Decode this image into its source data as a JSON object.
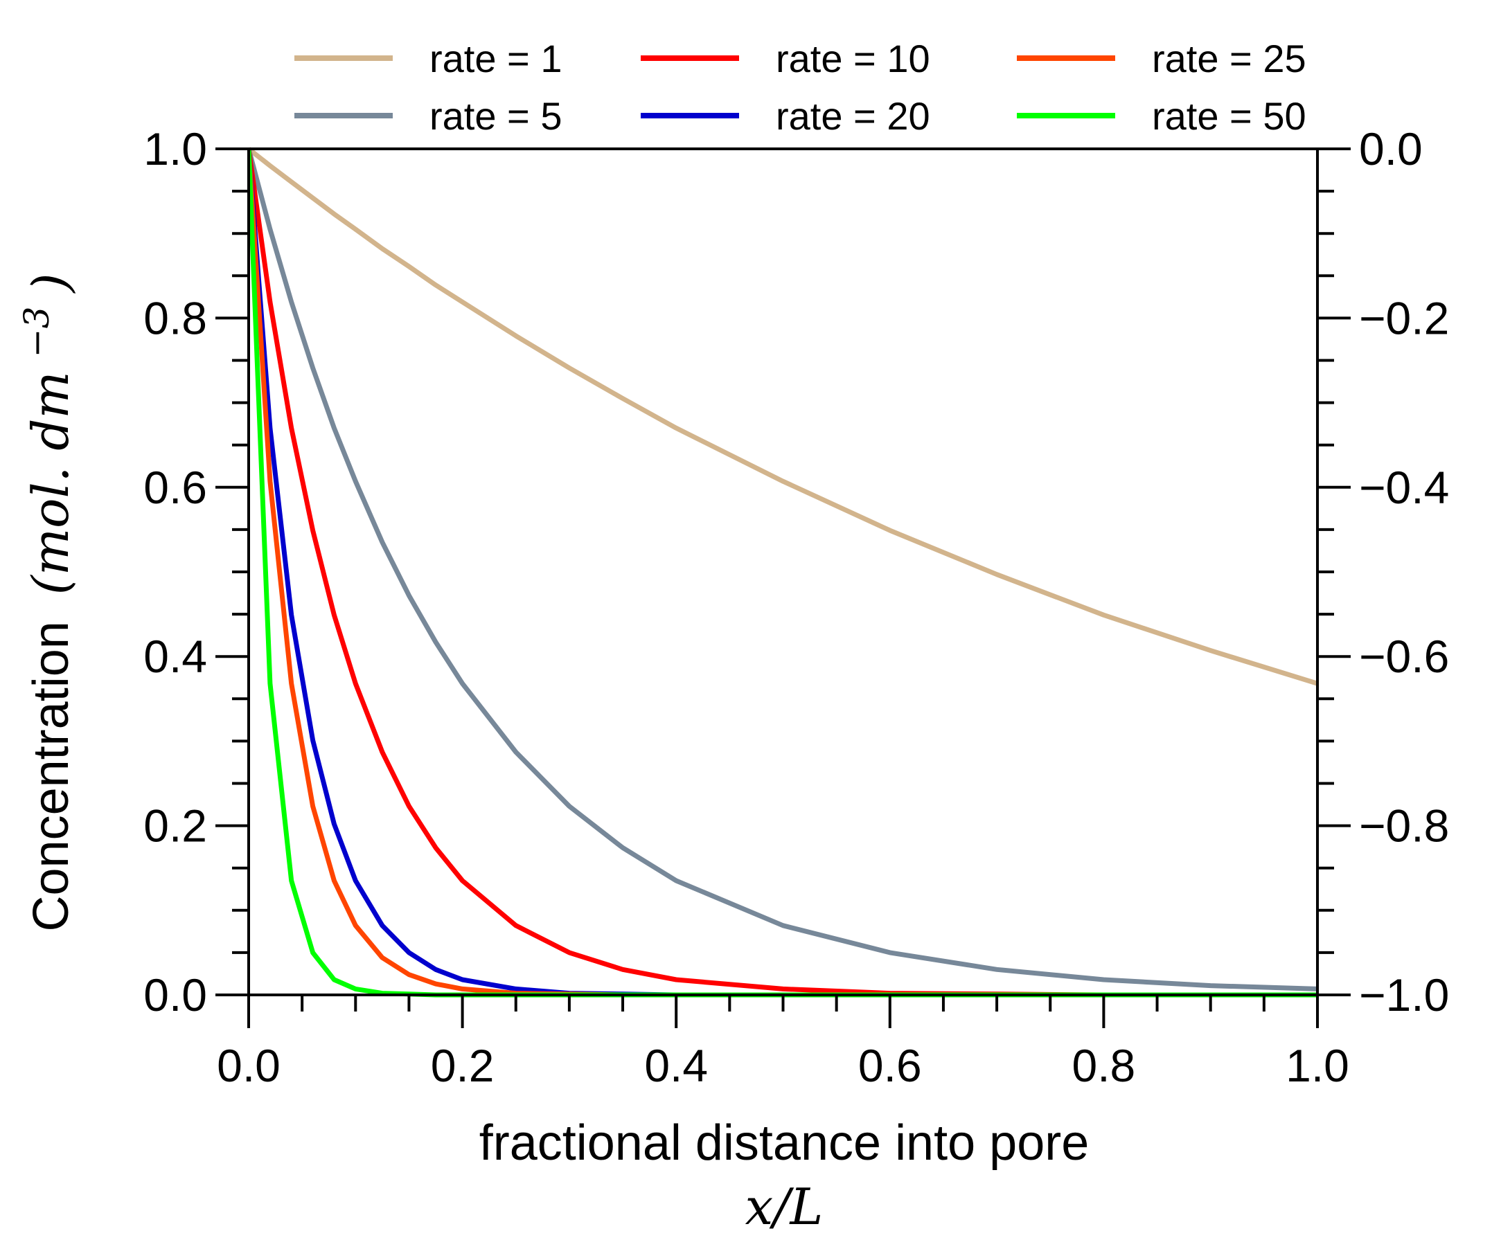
{
  "chart_data": {
    "type": "line",
    "xlabel": "fractional distance into pore",
    "xlabel_math": "x/L",
    "ylabel_text": "Concentration",
    "ylabel_unit_math": "(mol. dm",
    "ylabel_unit_exponent": "−3",
    "ylabel_unit_close": ")",
    "xlim": [
      0,
      1
    ],
    "ylim": [
      0,
      1
    ],
    "y2lim": [
      -1,
      0
    ],
    "x_ticks": [
      "0.0",
      "0.2",
      "0.4",
      "0.6",
      "0.8",
      "1.0"
    ],
    "y_ticks": [
      "0.0",
      "0.2",
      "0.4",
      "0.6",
      "0.8",
      "1.0"
    ],
    "y2_ticks": [
      "−1.0",
      "−0.8",
      "−0.6",
      "−0.4",
      "−0.2",
      "0.0"
    ],
    "grid": false,
    "legend_placement": "top",
    "x": [
      0,
      0.02,
      0.04,
      0.06,
      0.08,
      0.1,
      0.125,
      0.15,
      0.175,
      0.2,
      0.25,
      0.3,
      0.35,
      0.4,
      0.5,
      0.6,
      0.7,
      0.8,
      0.9,
      1.0
    ],
    "series": [
      {
        "name": "rate = 1",
        "color": "#d2b48c",
        "values": [
          1.0,
          0.98,
          0.961,
          0.942,
          0.923,
          0.905,
          0.882,
          0.861,
          0.839,
          0.819,
          0.779,
          0.741,
          0.705,
          0.67,
          0.607,
          0.549,
          0.497,
          0.449,
          0.407,
          0.368
        ]
      },
      {
        "name": "rate = 5",
        "color": "#778899",
        "values": [
          1.0,
          0.905,
          0.819,
          0.741,
          0.67,
          0.607,
          0.535,
          0.472,
          0.417,
          0.368,
          0.287,
          0.223,
          0.174,
          0.135,
          0.082,
          0.05,
          0.03,
          0.018,
          0.011,
          0.007
        ]
      },
      {
        "name": "rate = 10",
        "color": "#ff0000",
        "values": [
          1.0,
          0.819,
          0.67,
          0.549,
          0.449,
          0.368,
          0.287,
          0.223,
          0.174,
          0.135,
          0.082,
          0.05,
          0.03,
          0.018,
          0.007,
          0.002,
          0.001,
          0.0,
          0.0,
          0.0
        ]
      },
      {
        "name": "rate = 20",
        "color": "#0000cd",
        "values": [
          1.0,
          0.67,
          0.449,
          0.301,
          0.202,
          0.135,
          0.082,
          0.05,
          0.03,
          0.018,
          0.007,
          0.002,
          0.001,
          0.0,
          0.0,
          0.0,
          0.0,
          0.0,
          0.0,
          0.0
        ]
      },
      {
        "name": "rate = 25",
        "color": "#ff4500",
        "values": [
          1.0,
          0.607,
          0.368,
          0.223,
          0.135,
          0.082,
          0.044,
          0.024,
          0.013,
          0.007,
          0.002,
          0.001,
          0.0,
          0.0,
          0.0,
          0.0,
          0.0,
          0.0,
          0.0,
          0.0
        ]
      },
      {
        "name": "rate = 50",
        "color": "#00ff00",
        "values": [
          1.0,
          0.368,
          0.135,
          0.05,
          0.018,
          0.007,
          0.002,
          0.001,
          0.0,
          0.0,
          0.0,
          0.0,
          0.0,
          0.0,
          0.0,
          0.0,
          0.0,
          0.0,
          0.0,
          0.0
        ]
      }
    ]
  }
}
